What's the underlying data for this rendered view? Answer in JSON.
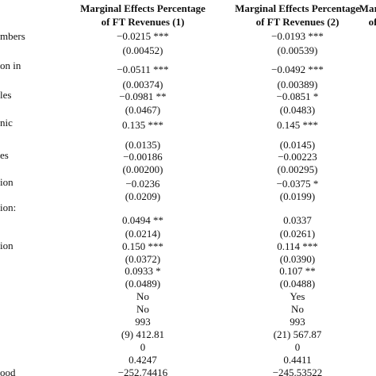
{
  "header": {
    "columns": [
      {
        "line1": "Marginal Effects Percentage",
        "line2": "of FT Revenues (1)"
      },
      {
        "line1": "Marginal Effects Percentage",
        "line2": "of FT Revenues (2)"
      },
      {
        "line1": "Margi",
        "line2": "of"
      }
    ]
  },
  "row_labels": [
    "mbers",
    "on in",
    "les",
    "nic",
    "es",
    "ion",
    "ion:",
    "ion",
    "ood"
  ],
  "table": {
    "rows": [
      [
        "−0.0215 ***",
        "−0.0193 ***"
      ],
      [
        "(0.00452)",
        "(0.00539)"
      ],
      [
        "−0.0511 ***",
        "−0.0492 ***"
      ],
      [
        "(0.00374)",
        "(0.00389)"
      ],
      [
        "−0.0981 **",
        "−0.0851 *"
      ],
      [
        "(0.0467)",
        "(0.0483)"
      ],
      [
        "0.135 ***",
        "0.145 ***"
      ],
      [
        "(0.0135)",
        "(0.0145)"
      ],
      [
        "−0.00186",
        "−0.00223"
      ],
      [
        "(0.00200)",
        "(0.00295)"
      ],
      [
        "−0.0236",
        "−0.0375 *"
      ],
      [
        "(0.0209)",
        "(0.0199)"
      ],
      [
        "0.0494 **",
        "0.0337"
      ],
      [
        "(0.0214)",
        "(0.0261)"
      ],
      [
        "0.150 ***",
        "0.114 ***"
      ],
      [
        "(0.0372)",
        "(0.0390)"
      ],
      [
        "0.0933 *",
        "0.107 **"
      ],
      [
        "(0.0489)",
        "(0.0488)"
      ],
      [
        "No",
        "Yes"
      ],
      [
        "No",
        "No"
      ],
      [
        "993",
        "993"
      ],
      [
        "(9) 412.81",
        "(21) 567.87"
      ],
      [
        "0",
        "0"
      ],
      [
        "0.4247",
        "0.4411"
      ],
      [
        "−252.74416",
        "−245.53522"
      ]
    ]
  }
}
